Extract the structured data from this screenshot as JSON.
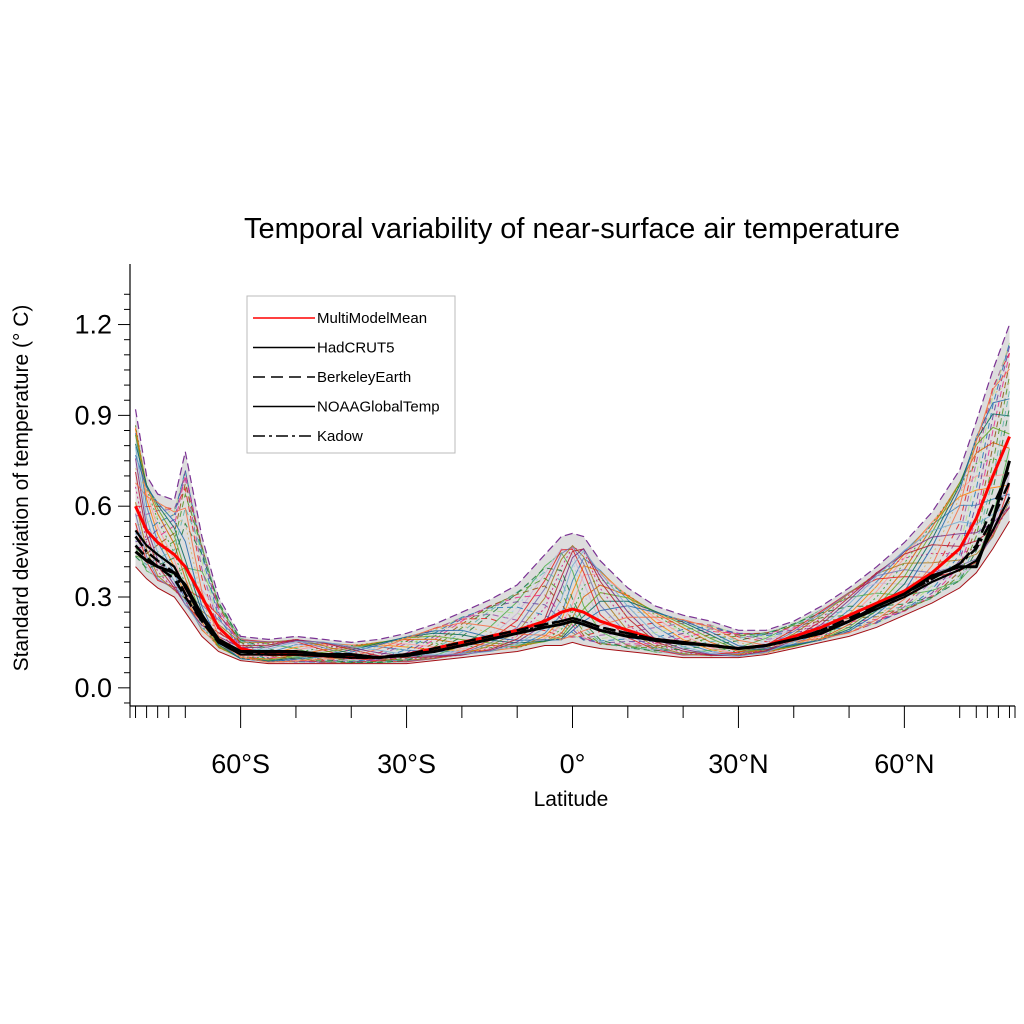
{
  "chart_data": {
    "type": "line",
    "title": "Temporal variability of near-surface air temperature",
    "xlabel": "Latitude",
    "ylabel": "Standard deviation of temperature (° C)",
    "xlim": [
      -80,
      80
    ],
    "ylim": [
      -0.06,
      1.4
    ],
    "yticks": [
      0.0,
      0.3,
      0.6,
      0.9,
      1.2
    ],
    "ytick_labels": [
      "0.0",
      "0.3",
      "0.6",
      "0.9",
      "1.2"
    ],
    "xticks": [
      -60,
      -30,
      0,
      30,
      60
    ],
    "xtick_labels": [
      "60°S",
      "30°S",
      "0°",
      "30°N",
      "60°N"
    ],
    "x": [
      -79,
      -77,
      -75,
      -72,
      -70,
      -67,
      -64,
      -60,
      -55,
      -50,
      -45,
      -40,
      -35,
      -30,
      -25,
      -20,
      -15,
      -10,
      -5,
      -2,
      0,
      2,
      5,
      10,
      15,
      20,
      25,
      30,
      35,
      40,
      45,
      50,
      55,
      60,
      65,
      70,
      73,
      76,
      79
    ],
    "series": [
      {
        "name": "MultiModelMean",
        "values": [
          0.6,
          0.52,
          0.48,
          0.44,
          0.4,
          0.3,
          0.2,
          0.13,
          0.11,
          0.11,
          0.105,
          0.1,
          0.1,
          0.11,
          0.13,
          0.15,
          0.17,
          0.19,
          0.22,
          0.25,
          0.26,
          0.25,
          0.22,
          0.19,
          0.16,
          0.15,
          0.14,
          0.13,
          0.14,
          0.17,
          0.2,
          0.24,
          0.28,
          0.32,
          0.38,
          0.46,
          0.56,
          0.7,
          0.83
        ]
      },
      {
        "name": "HadCRUT5",
        "values": [
          0.45,
          0.42,
          0.4,
          0.38,
          0.34,
          0.24,
          0.16,
          0.12,
          0.12,
          0.12,
          0.11,
          0.11,
          0.1,
          0.11,
          0.12,
          0.14,
          0.16,
          0.18,
          0.2,
          0.21,
          0.22,
          0.21,
          0.19,
          0.17,
          0.16,
          0.15,
          0.14,
          0.13,
          0.14,
          0.16,
          0.18,
          0.22,
          0.27,
          0.31,
          0.37,
          0.4,
          0.4,
          0.55,
          0.75
        ]
      },
      {
        "name": "BerkeleyEarth",
        "values": [
          0.47,
          0.43,
          0.4,
          0.36,
          0.3,
          0.22,
          0.15,
          0.12,
          0.12,
          0.12,
          0.11,
          0.11,
          0.1,
          0.11,
          0.13,
          0.15,
          0.17,
          0.19,
          0.21,
          0.22,
          0.23,
          0.22,
          0.2,
          0.18,
          0.16,
          0.15,
          0.14,
          0.13,
          0.14,
          0.16,
          0.19,
          0.23,
          0.27,
          0.31,
          0.36,
          0.41,
          0.47,
          0.6,
          0.72
        ]
      },
      {
        "name": "NOAAGlobalTemp",
        "values": [
          0.52,
          0.47,
          0.44,
          0.4,
          0.33,
          0.23,
          0.15,
          0.11,
          0.11,
          0.11,
          0.105,
          0.1,
          0.1,
          0.105,
          0.12,
          0.14,
          0.16,
          0.18,
          0.2,
          0.21,
          0.22,
          0.21,
          0.19,
          0.17,
          0.155,
          0.145,
          0.14,
          0.13,
          0.14,
          0.16,
          0.18,
          0.22,
          0.26,
          0.3,
          0.35,
          0.39,
          0.42,
          0.52,
          0.63
        ]
      },
      {
        "name": "Kadow",
        "values": [
          0.5,
          0.45,
          0.42,
          0.38,
          0.31,
          0.22,
          0.15,
          0.12,
          0.11,
          0.11,
          0.105,
          0.1,
          0.1,
          0.11,
          0.12,
          0.14,
          0.16,
          0.18,
          0.21,
          0.22,
          0.23,
          0.22,
          0.2,
          0.18,
          0.16,
          0.15,
          0.14,
          0.13,
          0.14,
          0.16,
          0.19,
          0.22,
          0.27,
          0.31,
          0.36,
          0.41,
          0.46,
          0.56,
          0.68
        ]
      }
    ],
    "ensemble_range": {
      "name": "model spread",
      "lower": [
        0.4,
        0.36,
        0.33,
        0.3,
        0.25,
        0.17,
        0.12,
        0.09,
        0.08,
        0.08,
        0.08,
        0.08,
        0.08,
        0.08,
        0.09,
        0.1,
        0.11,
        0.12,
        0.14,
        0.14,
        0.15,
        0.14,
        0.13,
        0.12,
        0.11,
        0.1,
        0.1,
        0.1,
        0.11,
        0.13,
        0.15,
        0.17,
        0.2,
        0.24,
        0.28,
        0.33,
        0.38,
        0.46,
        0.55
      ],
      "upper": [
        0.92,
        0.7,
        0.64,
        0.62,
        0.78,
        0.5,
        0.3,
        0.17,
        0.16,
        0.17,
        0.16,
        0.15,
        0.16,
        0.18,
        0.21,
        0.25,
        0.29,
        0.34,
        0.44,
        0.5,
        0.51,
        0.5,
        0.42,
        0.33,
        0.27,
        0.24,
        0.22,
        0.19,
        0.19,
        0.22,
        0.27,
        0.33,
        0.4,
        0.48,
        0.58,
        0.72,
        0.88,
        1.05,
        1.2
      ]
    },
    "legend": {
      "placement": "top-left",
      "entries": [
        {
          "label": "MultiModelMean",
          "color": "#ff0000",
          "dash": "solid"
        },
        {
          "label": "HadCRUT5",
          "color": "#000000",
          "dash": "solid"
        },
        {
          "label": "BerkeleyEarth",
          "color": "#000000",
          "dash": "dashed"
        },
        {
          "label": "NOAAGlobalTemp",
          "color": "#000000",
          "dash": "solid"
        },
        {
          "label": "Kadow",
          "color": "#000000",
          "dash": "dashdot"
        }
      ]
    },
    "colors": {
      "multimodel": "#ff0000",
      "observations": "#000000",
      "spread": "#9e9e9e",
      "models": [
        "#e41a1c",
        "#377eb8",
        "#4daf4a",
        "#984ea3",
        "#ff7f00",
        "#a6cee3",
        "#b2df8a",
        "#fb9a99",
        "#cab2d6",
        "#1f78b4",
        "#33a02c",
        "#e31a1c",
        "#6a3d9a",
        "#d95f02",
        "#7570b3",
        "#e7298a",
        "#66a61e",
        "#a6761d",
        "#8c510a",
        "#01665e",
        "#c51b7d",
        "#4d9221",
        "#2166ac",
        "#b2182b",
        "#5ab4ac",
        "#d8b365",
        "#762a83",
        "#1b7837",
        "#f46d43",
        "#74add1"
      ]
    }
  }
}
